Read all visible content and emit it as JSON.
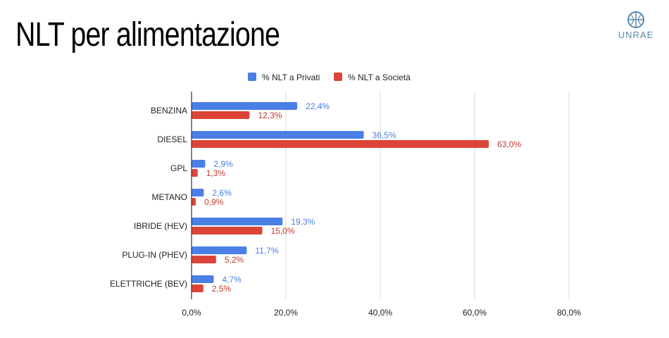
{
  "header": {
    "title": "NLT per alimentazione",
    "logo_text": "UNRAE"
  },
  "colors": {
    "series_privati": "#4a7fe6",
    "series_societa": "#dc4438",
    "label_privati": "#4a7fe6",
    "label_societa": "#c0392b",
    "grid": "#d9d9d9",
    "axis": "#333333"
  },
  "chart_data": {
    "type": "bar",
    "orientation": "horizontal",
    "title": "",
    "xlabel": "",
    "ylabel": "",
    "categories": [
      "BENZINA",
      "DIESEL",
      "GPL",
      "METANO",
      "IBRIDE (HEV)",
      "PLUG-IN (PHEV)",
      "ELETTRICHE (BEV)"
    ],
    "series": [
      {
        "name": "% NLT a Privati",
        "values": [
          22.4,
          36.5,
          2.9,
          2.6,
          19.3,
          11.7,
          4.7
        ],
        "labels": [
          "22,4%",
          "36,5%",
          "2,9%",
          "2,6%",
          "19,3%",
          "11,7%",
          "4,7%"
        ]
      },
      {
        "name": "% NLT a Società",
        "values": [
          12.3,
          63.0,
          1.3,
          0.9,
          15.0,
          5.2,
          2.5
        ],
        "labels": [
          "12,3%",
          "63,0%",
          "1,3%",
          "0,9%",
          "15,0%",
          "5,2%",
          "2,5%"
        ]
      }
    ],
    "xlim": [
      0,
      90
    ],
    "xticks": [
      0,
      20,
      40,
      60,
      80
    ],
    "xtick_labels": [
      "0,0%",
      "20,0%",
      "40,0%",
      "60,0%",
      "80,0%"
    ],
    "grid": true,
    "legend_position": "top"
  }
}
